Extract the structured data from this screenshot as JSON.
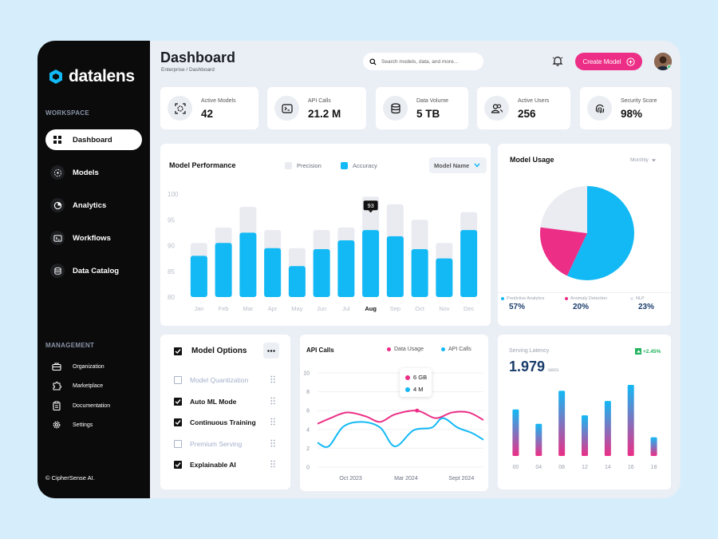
{
  "brand": {
    "name": "datalens"
  },
  "sidebar": {
    "workspace_label": "WORKSPACE",
    "items": [
      {
        "label": "Dashboard",
        "icon": "grid-icon",
        "active": true
      },
      {
        "label": "Models",
        "icon": "models-icon"
      },
      {
        "label": "Analytics",
        "icon": "pie-icon"
      },
      {
        "label": "Workflows",
        "icon": "terminal-icon"
      },
      {
        "label": "Data Catalog",
        "icon": "database-icon"
      }
    ],
    "management_label": "MANAGEMENT",
    "management": [
      {
        "label": "Organization",
        "icon": "briefcase-icon"
      },
      {
        "label": "Marketplace",
        "icon": "puzzle-icon"
      },
      {
        "label": "Documentation",
        "icon": "clipboard-icon"
      },
      {
        "label": "Settings",
        "icon": "gear-icon"
      }
    ],
    "copyright": "© CipherSense AI."
  },
  "header": {
    "title": "Dashboard",
    "breadcrumb": "Enterprise / Dashboard",
    "search_placeholder": "Search models, data, and more...",
    "create_label": "Create Model"
  },
  "stats": [
    {
      "label": "Active Models",
      "value": "42",
      "icon": "target-icon"
    },
    {
      "label": "API Calls",
      "value": "21.2 M",
      "icon": "terminal-icon"
    },
    {
      "label": "Data Volume",
      "value": "5 TB",
      "icon": "database-icon"
    },
    {
      "label": "Active Users",
      "value": "256",
      "icon": "users-icon"
    },
    {
      "label": "Security Score",
      "value": "98%",
      "icon": "fingerprint-icon"
    }
  ],
  "colors": {
    "accent": "#ec2e86",
    "blue": "#12b9f5",
    "light": "#eaecf2"
  },
  "chart_data": [
    {
      "type": "bar",
      "title": "Model Performance",
      "categories": [
        "Jan",
        "Feb",
        "Mar",
        "Apr",
        "May",
        "Jun",
        "Jul",
        "Aug",
        "Sep",
        "Oct",
        "Nov",
        "Dec"
      ],
      "series": [
        {
          "name": "Precision",
          "values": [
            90.5,
            93.5,
            97.5,
            93,
            89.5,
            93,
            93.5,
            99.5,
            98,
            95,
            90.5,
            96.5
          ]
        },
        {
          "name": "Accuracy",
          "values": [
            88,
            90.5,
            92.5,
            89.5,
            86,
            89.3,
            91,
            93,
            91.8,
            89.3,
            87.5,
            93
          ]
        }
      ],
      "ylim": [
        80,
        100
      ],
      "yticks": [
        80,
        85,
        90,
        95,
        100
      ],
      "highlight": {
        "category": "Aug",
        "label": "93"
      },
      "dropdown": "Model Name"
    },
    {
      "type": "pie",
      "title": "Model Usage",
      "period": "Monthly",
      "slices": [
        {
          "name": "Predictive Analytics",
          "value": 57,
          "label": "57%"
        },
        {
          "name": "Anomaly Detection",
          "value": 20,
          "label": "20%"
        },
        {
          "name": "NLP",
          "value": 23,
          "label": "23%"
        }
      ]
    },
    {
      "type": "line",
      "title": "API Calls",
      "series": [
        {
          "name": "Data Usage",
          "points": [
            [
              0,
              4.6
            ],
            [
              0.7,
              5.2
            ],
            [
              1.6,
              5.8
            ],
            [
              2.6,
              5.4
            ],
            [
              3.4,
              4.8
            ],
            [
              4.2,
              5.6
            ],
            [
              5.4,
              6.0
            ],
            [
              6.4,
              5.2
            ],
            [
              7.3,
              5.8
            ],
            [
              8.2,
              5.8
            ],
            [
              9,
              5.0
            ]
          ]
        },
        {
          "name": "API Calls",
          "points": [
            [
              0,
              2.6
            ],
            [
              0.6,
              2.2
            ],
            [
              1.4,
              4.3
            ],
            [
              2.4,
              4.8
            ],
            [
              3.4,
              4.2
            ],
            [
              4.2,
              2.2
            ],
            [
              5.2,
              3.9
            ],
            [
              6.2,
              4.2
            ],
            [
              6.8,
              5.2
            ],
            [
              7.6,
              4.2
            ],
            [
              8.4,
              3.6
            ],
            [
              9,
              2.9
            ]
          ]
        }
      ],
      "xticks": [
        "Oct 2023",
        "Mar 2024",
        "Sept 2024"
      ],
      "yticks": [
        0,
        2,
        4,
        6,
        8,
        10
      ],
      "ylim": [
        0,
        10
      ],
      "tooltip": [
        "6 GB",
        "4 M"
      ]
    },
    {
      "type": "bar",
      "title": "Serving Latency",
      "value": "1.979",
      "unit": "secs",
      "delta": "+2.45%",
      "categories": [
        "00",
        "04",
        "08",
        "12",
        "14",
        "16",
        "18"
      ],
      "values": [
        5.5,
        3.8,
        7.7,
        4.8,
        6.5,
        8.4,
        2.2
      ],
      "ylim": [
        0,
        10
      ]
    }
  ],
  "options": {
    "title": "Model Options",
    "items": [
      {
        "label": "Model Quantization",
        "checked": false
      },
      {
        "label": "Auto ML Mode",
        "checked": true
      },
      {
        "label": "Continuous Training",
        "checked": true
      },
      {
        "label": "Premium Serving",
        "checked": false
      },
      {
        "label": "Explainable AI",
        "checked": true
      }
    ]
  }
}
